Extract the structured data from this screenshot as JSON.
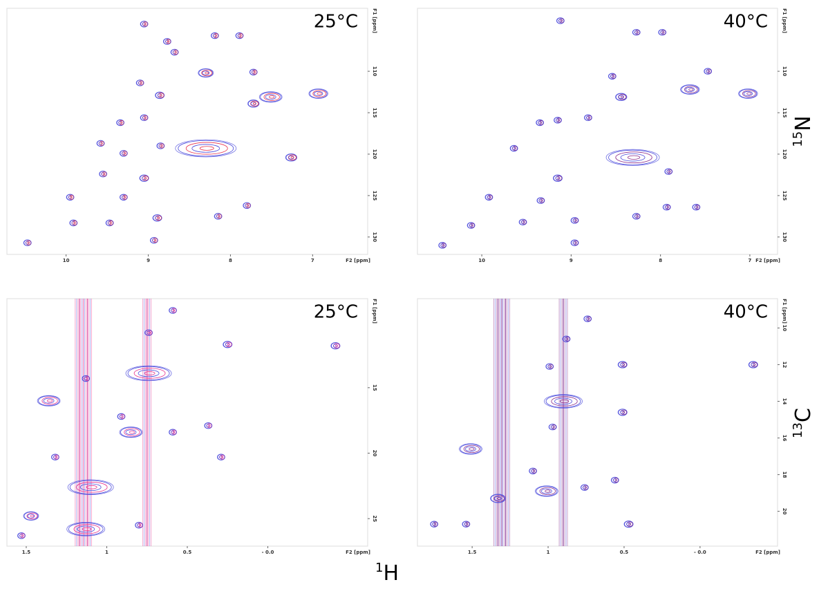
{
  "chart_data": [
    {
      "type": "contour",
      "title": "25°C",
      "xlabel": "F2 [ppm]",
      "ylabel": "F1 [ppm]",
      "xlim": [
        10.72,
        6.33
      ],
      "ylim": [
        102.4,
        132.1
      ],
      "xticks": [
        10,
        9,
        8,
        7
      ],
      "yticks": [
        110,
        115,
        120,
        125,
        130
      ],
      "colors": [
        "#4b4bdc",
        "#e8344e"
      ],
      "peaks": {
        "x": [
          10.47,
          9.91,
          9.47,
          8.93,
          8.89,
          8.15,
          7.8,
          9.3,
          9.95,
          9.05,
          9.55,
          9.3,
          9.58,
          8.85,
          9.34,
          9.05,
          8.86,
          9.1,
          8.3,
          8.68,
          8.77,
          8.19,
          7.89,
          9.05,
          7.72,
          7.51,
          6.93,
          7.26,
          8.3,
          7.72
        ],
        "y": [
          130.7,
          128.3,
          128.3,
          130.4,
          127.7,
          127.5,
          126.2,
          125.2,
          125.2,
          122.9,
          122.4,
          119.9,
          118.7,
          119.0,
          116.2,
          115.6,
          112.9,
          111.4,
          110.2,
          107.7,
          106.4,
          105.7,
          105.7,
          104.3,
          110.1,
          113.1,
          112.7,
          120.4,
          119.3,
          113.9
        ],
        "size": [
          1,
          1,
          1,
          1,
          1.2,
          1,
          1,
          1,
          1,
          1.2,
          1,
          1,
          1,
          1,
          1,
          1,
          1.2,
          1,
          2,
          1,
          1,
          1,
          1,
          1,
          1,
          3,
          2.5,
          1.5,
          8,
          1.5
        ]
      }
    },
    {
      "type": "contour",
      "title": "40°C",
      "xlabel": "F2 [ppm]",
      "ylabel": "F1 [ppm]",
      "xlim": [
        10.72,
        6.69
      ],
      "ylim": [
        102.4,
        132.1
      ],
      "xticks": [
        10,
        9,
        8,
        7
      ],
      "yticks": [
        110,
        115,
        120,
        125,
        130
      ],
      "colors": [
        "#4b4bdc",
        "#8a2a8a"
      ],
      "peaks": {
        "x": [
          10.44,
          10.12,
          9.54,
          8.96,
          8.96,
          8.27,
          7.93,
          9.34,
          9.92,
          9.15,
          9.64,
          9.35,
          9.15,
          8.81,
          8.44,
          8.54,
          8.27,
          9.12,
          7.98,
          7.47,
          7.67,
          7.02,
          8.31,
          7.91,
          7.6
        ],
        "y": [
          131.0,
          128.6,
          128.2,
          130.7,
          128.0,
          127.5,
          126.4,
          125.6,
          125.2,
          122.9,
          119.3,
          116.2,
          115.9,
          115.6,
          113.1,
          110.6,
          105.3,
          103.9,
          105.3,
          110.0,
          112.2,
          112.7,
          120.4,
          122.1,
          126.4
        ],
        "size": [
          1,
          1,
          1,
          1,
          1,
          1,
          1,
          1,
          1,
          1.2,
          1,
          1,
          1,
          1,
          1.5,
          1,
          1,
          1,
          1,
          1,
          2.5,
          2.5,
          7,
          1,
          1
        ]
      }
    },
    {
      "type": "contour",
      "title": "25°C",
      "xlabel": "F2 [ppm]",
      "ylabel": "F1 [ppm]",
      "xlim": [
        1.62,
        -0.62
      ],
      "ylim": [
        8.2,
        27.1
      ],
      "xticks": [
        1.5,
        1.0,
        0.5,
        {
          "value": 0,
          "label": "- 0.0"
        }
      ],
      "yticks": [
        15,
        20,
        25
      ],
      "colors": [
        "#4b4bdc",
        "#e8348e"
      ],
      "ridges": [
        1.17,
        1.12,
        0.75
      ],
      "peaks": {
        "x": [
          -0.42,
          0.25,
          0.59,
          0.74,
          0.74,
          1.13,
          1.36,
          0.91,
          0.85,
          0.59,
          0.37,
          0.29,
          1.32,
          1.1,
          1.47,
          1.13,
          1.53,
          0.8
        ],
        "y": [
          11.8,
          11.7,
          9.1,
          10.8,
          13.9,
          14.3,
          16.0,
          17.2,
          18.4,
          18.4,
          17.9,
          20.3,
          20.3,
          22.6,
          24.8,
          25.8,
          26.3,
          25.5
        ],
        "size": [
          1.2,
          1.2,
          1,
          1,
          6,
          1,
          3,
          1,
          3,
          1,
          1,
          1,
          1,
          6,
          2,
          5,
          1,
          1
        ]
      }
    },
    {
      "type": "contour",
      "title": "40°C",
      "xlabel": "F2 [ppm]",
      "ylabel": "F1 [ppm]",
      "xlim": [
        1.86,
        -0.51
      ],
      "ylim": [
        8.4,
        21.9
      ],
      "xticks": [
        1.5,
        1.0,
        0.5,
        {
          "value": 0,
          "label": "- 0.0"
        }
      ],
      "yticks": [
        10,
        12,
        14,
        16,
        18,
        20
      ],
      "colors": [
        "#4b4bdc",
        "#8a2a8a"
      ],
      "ridges": [
        1.33,
        1.28,
        0.9
      ],
      "peaks": {
        "x": [
          -0.35,
          0.51,
          0.74,
          0.88,
          0.99,
          0.9,
          0.51,
          0.97,
          1.51,
          1.1,
          1.01,
          0.76,
          0.56,
          0.47,
          1.54,
          1.75,
          1.33
        ],
        "y": [
          12.0,
          12.0,
          9.5,
          10.6,
          12.1,
          14.0,
          14.6,
          15.4,
          16.6,
          17.8,
          18.9,
          18.7,
          18.3,
          20.7,
          20.7,
          20.7,
          19.3
        ],
        "size": [
          1.2,
          1.2,
          1,
          1,
          1,
          5,
          1.2,
          1,
          3,
          1,
          3,
          1,
          1,
          1.2,
          1,
          1,
          2
        ]
      }
    }
  ],
  "figure_labels": {
    "n15": {
      "mass": "15",
      "symbol": "N"
    },
    "c13": {
      "mass": "13",
      "symbol": "C"
    },
    "h1": {
      "mass": "1",
      "symbol": "H"
    }
  }
}
